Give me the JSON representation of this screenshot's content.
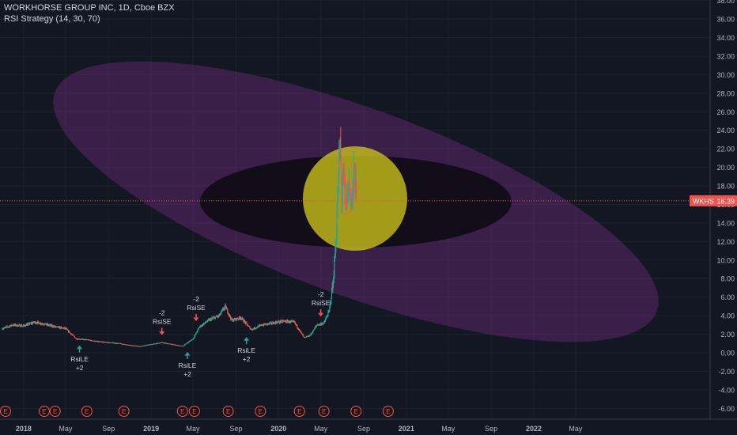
{
  "header": {
    "symbol_line": "WORKHORSE GROUP INC, 1D, Cboe BZX",
    "indicator_line": "RSI Strategy (14, 30, 70)"
  },
  "colors": {
    "background": "#131722",
    "grid": "#1e222d",
    "axis_text": "#b2b5be",
    "up": "#26a69a",
    "down": "#ef5350",
    "price_line": "#ef5350",
    "ellipse_outer": "#6a2a7a",
    "ellipse_inner": "#0c0a10",
    "circle": "#c8c01a",
    "earnings": "#ef5350"
  },
  "chart_data": {
    "type": "candlestick",
    "title": "WORKHORSE GROUP INC, 1D, Cboe BZX",
    "indicator": "RSI Strategy (14, 30, 70)",
    "y_axis": {
      "min": -7,
      "max": 38,
      "ticks": [
        "-6.00",
        "-4.00",
        "-2.00",
        "0.00",
        "2.00",
        "4.00",
        "6.00",
        "8.00",
        "10.00",
        "12.00",
        "14.00",
        "16.00",
        "18.00",
        "20.00",
        "22.00",
        "24.00",
        "26.00",
        "28.00",
        "30.00",
        "32.00",
        "34.00",
        "36.00",
        "38.00"
      ]
    },
    "x_axis": {
      "ticks": [
        "2018",
        "May",
        "Sep",
        "2019",
        "May",
        "Sep",
        "2020",
        "May",
        "Sep",
        "2021",
        "May",
        "Sep",
        "2022",
        "May"
      ]
    },
    "last_price": {
      "symbol": "WKHS",
      "value": 16.39,
      "label": "16.39"
    },
    "price_path": [
      [
        "2017-11-01",
        2.6
      ],
      [
        "2017-12-01",
        3.0
      ],
      [
        "2018-01-01",
        2.9
      ],
      [
        "2018-02-01",
        3.3
      ],
      [
        "2018-03-01",
        3.1
      ],
      [
        "2018-04-01",
        2.8
      ],
      [
        "2018-05-01",
        2.6
      ],
      [
        "2018-06-01",
        1.5
      ],
      [
        "2018-07-01",
        1.4
      ],
      [
        "2018-08-01",
        1.2
      ],
      [
        "2018-09-01",
        1.1
      ],
      [
        "2018-10-01",
        1.0
      ],
      [
        "2018-11-01",
        0.8
      ],
      [
        "2018-12-01",
        0.7
      ],
      [
        "2019-01-01",
        0.9
      ],
      [
        "2019-02-01",
        1.1
      ],
      [
        "2019-03-01",
        0.9
      ],
      [
        "2019-04-01",
        0.7
      ],
      [
        "2019-05-01",
        1.5
      ],
      [
        "2019-05-20",
        2.8
      ],
      [
        "2019-06-15",
        3.5
      ],
      [
        "2019-07-15",
        4.0
      ],
      [
        "2019-08-01",
        5.0
      ],
      [
        "2019-08-20",
        3.5
      ],
      [
        "2019-09-15",
        3.8
      ],
      [
        "2019-10-15",
        2.5
      ],
      [
        "2019-11-15",
        3.0
      ],
      [
        "2019-12-15",
        3.2
      ],
      [
        "2020-01-15",
        3.4
      ],
      [
        "2020-02-15",
        3.3
      ],
      [
        "2020-03-15",
        1.6
      ],
      [
        "2020-04-01",
        1.9
      ],
      [
        "2020-04-20",
        3.0
      ],
      [
        "2020-05-10",
        3.2
      ],
      [
        "2020-05-25",
        4.5
      ],
      [
        "2020-06-05",
        7.5
      ],
      [
        "2020-06-10",
        10.0
      ],
      [
        "2020-06-15",
        13.5
      ],
      [
        "2020-06-20",
        18.0
      ],
      [
        "2020-06-25",
        22.5
      ],
      [
        "2020-06-30",
        17.0
      ],
      [
        "2020-07-05",
        19.0
      ],
      [
        "2020-07-12",
        15.5
      ],
      [
        "2020-07-20",
        18.5
      ],
      [
        "2020-07-28",
        16.0
      ],
      [
        "2020-08-05",
        19.5
      ],
      [
        "2020-08-12",
        16.39
      ]
    ],
    "signals": [
      {
        "type": "long",
        "label": "RsiLE",
        "qty": "+2",
        "date": "2018-06-10",
        "price": 1.3
      },
      {
        "type": "short",
        "label": "RsiSE",
        "qty": "-2",
        "date": "2019-02-01",
        "price": 1.4
      },
      {
        "type": "long",
        "label": "RsiLE",
        "qty": "+2",
        "date": "2019-04-15",
        "price": 0.6
      },
      {
        "type": "short",
        "label": "RsiSE",
        "qty": "-2",
        "date": "2019-05-10",
        "price": 2.9
      },
      {
        "type": "long",
        "label": "RsiLE",
        "qty": "+2",
        "date": "2019-10-01",
        "price": 2.2
      },
      {
        "type": "short",
        "label": "RsiSE",
        "qty": "-2",
        "date": "2020-05-01",
        "price": 3.4
      }
    ],
    "earnings": [
      {
        "label": "E",
        "date": "2017-11-10"
      },
      {
        "label": "E",
        "date": "2018-03-01"
      },
      {
        "label": "E",
        "date": "2018-04-01"
      },
      {
        "label": "E",
        "date": "2018-07-01"
      },
      {
        "label": "E",
        "date": "2018-10-15"
      },
      {
        "label": "E",
        "date": "2019-04-01"
      },
      {
        "label": "E",
        "date": "2019-05-05"
      },
      {
        "label": "E",
        "date": "2019-08-10"
      },
      {
        "label": "E",
        "date": "2019-11-10"
      },
      {
        "label": "E",
        "date": "2020-03-01"
      },
      {
        "label": "E",
        "date": "2020-05-10"
      },
      {
        "label": "E",
        "date": "2020-08-10"
      },
      {
        "label": "E",
        "date": "2020-11-10"
      }
    ],
    "grid": true
  }
}
